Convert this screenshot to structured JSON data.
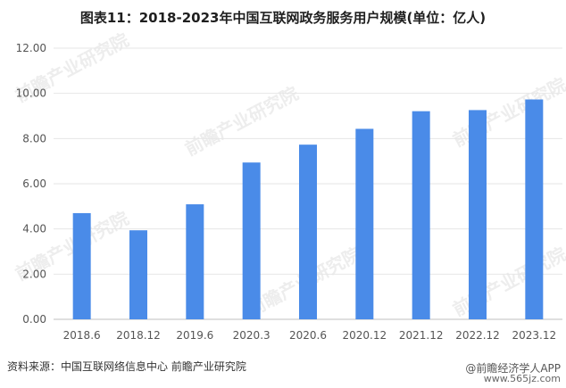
{
  "chart_data": {
    "type": "bar",
    "title": "图表11：2018-2023年中国互联网政务服务用户规模(单位：亿人)",
    "categories": [
      "2018.6",
      "2018.12",
      "2019.6",
      "2020.3",
      "2020.6",
      "2020.12",
      "2021.12",
      "2022.12",
      "2023.12"
    ],
    "values": [
      4.7,
      3.94,
      5.09,
      6.94,
      7.73,
      8.43,
      9.21,
      9.26,
      9.73
    ],
    "y_ticks": [
      "0.00",
      "2.00",
      "4.00",
      "6.00",
      "8.00",
      "10.00",
      "12.00"
    ],
    "ylim": [
      0,
      12
    ],
    "bar_color": "#4a8be8",
    "grid": true
  },
  "source_text": "资料来源：中国互联网络信息中心 前瞻产业研究院",
  "watermark_text": "前瞻产业研究院",
  "footer_logo_text": "@前瞻经济学人APP",
  "site_mark_text": "www.565jz.com"
}
